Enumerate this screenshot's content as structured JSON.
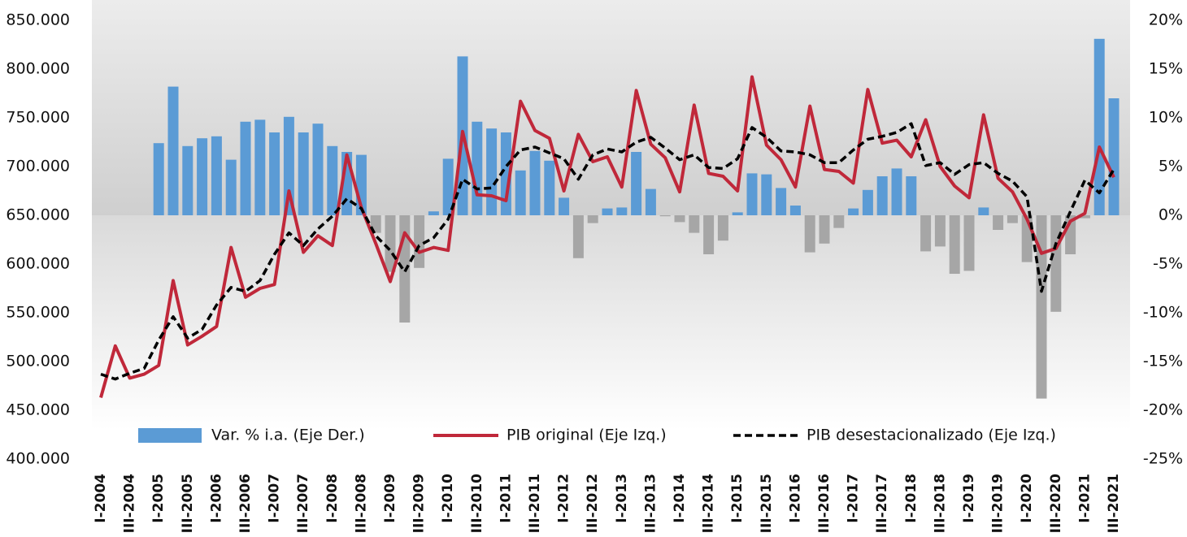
{
  "chart_data": {
    "type": "bar",
    "categories": [
      "I-2004",
      null,
      "III-2004",
      null,
      "I-2005",
      null,
      "III-2005",
      null,
      "I-2006",
      null,
      "III-2006",
      null,
      "I-2007",
      null,
      "III-2007",
      null,
      "I-2008",
      null,
      "III-2008",
      null,
      "I-2009",
      null,
      "III-2009",
      null,
      "I-2010",
      null,
      "III-2010",
      null,
      "I-2011",
      null,
      "III-2011",
      null,
      "I-2012",
      null,
      "III-2012",
      null,
      "I-2013",
      null,
      "III-2013",
      null,
      "I-2014",
      null,
      "III-2014",
      null,
      "I-2015",
      null,
      "III-2015",
      null,
      "I-2016",
      null,
      "III-2016",
      null,
      "I-2017",
      null,
      "III-2017",
      null,
      "I-2018",
      null,
      "III-2018",
      null,
      "I-2019",
      null,
      "III-2019",
      null,
      "I-2020",
      null,
      "III-2020",
      null,
      "I-2021",
      null,
      "III-2021"
    ],
    "series": [
      {
        "name": "Var. % i.a. (Eje Der.)",
        "type": "bar",
        "axis": "y2",
        "color": "#5b9bd5",
        "negative_color": "#a6a6a6",
        "values": [
          null,
          null,
          null,
          null,
          7.4,
          13.2,
          7.1,
          7.9,
          8.1,
          5.7,
          9.6,
          9.8,
          8.5,
          10.1,
          8.5,
          9.4,
          7.1,
          6.5,
          6.2,
          -1.8,
          -5.8,
          -11.0,
          -5.4,
          0.4,
          5.8,
          16.3,
          9.6,
          8.9,
          8.5,
          4.6,
          6.6,
          5.6,
          1.8,
          -4.4,
          -0.8,
          0.7,
          0.8,
          6.5,
          2.7,
          -0.1,
          -0.7,
          -1.8,
          -4.0,
          -2.6,
          0.3,
          4.3,
          4.2,
          2.8,
          1.0,
          -3.8,
          -2.9,
          -1.3,
          0.7,
          2.6,
          4.0,
          4.8,
          4.0,
          -3.7,
          -3.2,
          -6.0,
          -5.7,
          0.8,
          -1.5,
          -0.8,
          -4.8,
          -18.8,
          -9.9,
          -4.0,
          -0.3,
          18.1,
          12.0
        ]
      },
      {
        "name": "PIB original (Eje Izq.)",
        "type": "line",
        "axis": "y",
        "color": "#c0283a",
        "linestyle": "solid",
        "values": [
          463000,
          516000,
          483000,
          487000,
          496000,
          583000,
          517000,
          526000,
          536000,
          617000,
          566000,
          575000,
          579000,
          675000,
          612000,
          629000,
          619000,
          712000,
          658000,
          621000,
          582000,
          632000,
          612000,
          617000,
          614000,
          736000,
          671000,
          670000,
          665000,
          767000,
          737000,
          729000,
          675000,
          733000,
          705000,
          710000,
          679000,
          778000,
          723000,
          709000,
          674000,
          763000,
          693000,
          690000,
          675000,
          792000,
          722000,
          707000,
          679000,
          762000,
          697000,
          695000,
          683000,
          779000,
          724000,
          727000,
          710000,
          748000,
          700000,
          680000,
          668000,
          753000,
          688000,
          674000,
          646000,
          611000,
          616000,
          644000,
          652000,
          720000,
          689000
        ]
      },
      {
        "name": "PIB desestacionalizado (Eje Izq.)",
        "type": "line",
        "axis": "y",
        "color": "#000000",
        "linestyle": "dashed",
        "values": [
          487000,
          482000,
          488000,
          493000,
          522000,
          546000,
          524000,
          533000,
          558000,
          576000,
          572000,
          583000,
          610000,
          632000,
          619000,
          636000,
          649000,
          667000,
          657000,
          629000,
          614000,
          592000,
          619000,
          627000,
          646000,
          687000,
          677000,
          678000,
          700000,
          717000,
          720000,
          714000,
          708000,
          687000,
          712000,
          718000,
          715000,
          725000,
          730000,
          719000,
          707000,
          712000,
          699000,
          698000,
          708000,
          740000,
          730000,
          716000,
          715000,
          712000,
          704000,
          704000,
          717000,
          728000,
          731000,
          735000,
          744000,
          701000,
          704000,
          692000,
          702000,
          704000,
          693000,
          685000,
          669000,
          572000,
          621000,
          654000,
          686000,
          673000,
          697000
        ]
      }
    ],
    "ylim": [
      400000,
      850000
    ],
    "yticks": [
      {
        "value": 400000,
        "label": "400.000"
      },
      {
        "value": 450000,
        "label": "450.000"
      },
      {
        "value": 500000,
        "label": "500.000"
      },
      {
        "value": 550000,
        "label": "550.000"
      },
      {
        "value": 600000,
        "label": "600.000"
      },
      {
        "value": 650000,
        "label": "650.000"
      },
      {
        "value": 700000,
        "label": "700.000"
      },
      {
        "value": 750000,
        "label": "750.000"
      },
      {
        "value": 800000,
        "label": "800.000"
      },
      {
        "value": 850000,
        "label": "850.000"
      }
    ],
    "y2lim": [
      -25,
      20
    ],
    "y2ticks": [
      {
        "value": -25,
        "label": "-25%"
      },
      {
        "value": -20,
        "label": "-20%"
      },
      {
        "value": -15,
        "label": "-15%"
      },
      {
        "value": -10,
        "label": "-10%"
      },
      {
        "value": -5,
        "label": "-5%"
      },
      {
        "value": 0,
        "label": "0%"
      },
      {
        "value": 5,
        "label": "5%"
      },
      {
        "value": 10,
        "label": "10%"
      },
      {
        "value": 15,
        "label": "15%"
      },
      {
        "value": 20,
        "label": "20%"
      }
    ],
    "legend": "bottom"
  }
}
